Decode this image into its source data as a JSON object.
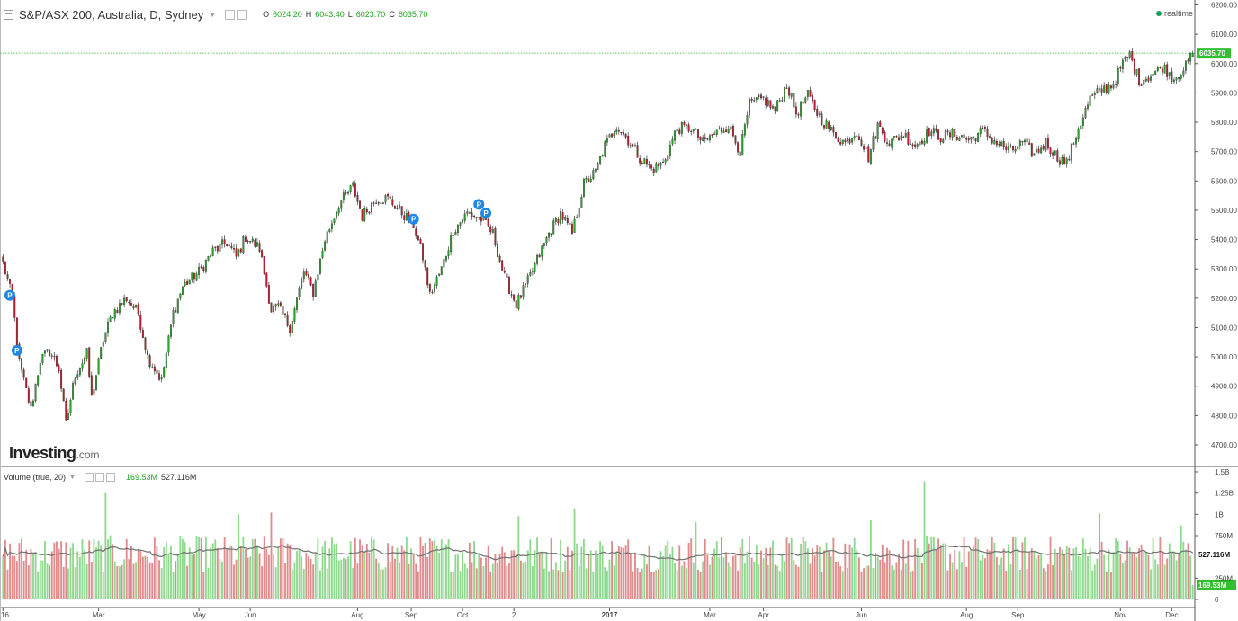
{
  "header": {
    "symbol": "S&P/ASX 200, Australia, D, Sydney",
    "ohlc": [
      {
        "k": "O",
        "v": "6024.20"
      },
      {
        "k": "H",
        "v": "6043.40"
      },
      {
        "k": "L",
        "v": "6023.70"
      },
      {
        "k": "C",
        "v": "6035.70"
      }
    ]
  },
  "realtime_label": "realtime",
  "logo": {
    "main": "Investing",
    "suffix": ".com"
  },
  "volume_header": {
    "name": "Volume (true, 20)",
    "v1": "169.53M",
    "v2": "527.116M"
  },
  "colors": {
    "up": "#1f9e1f",
    "down": "#b22222",
    "up_fill": "#2fa12f",
    "down_fill": "#bf1e2e",
    "vol_up": "#8fd98f",
    "vol_down": "#e08c8c",
    "ma": "#707070",
    "price_line": "#22b822",
    "marker": "#1e88e5"
  },
  "chart_data": [
    {
      "type": "candlestick",
      "title": "S&P/ASX 200, Australia, D, Sydney",
      "ylim": [
        4650,
        6200
      ],
      "y_ticks": [
        "6200.00",
        "6100.00",
        "6000.00",
        "5900.00",
        "5800.00",
        "5700.00",
        "5600.00",
        "5500.00",
        "5400.00",
        "5300.00",
        "5200.00",
        "5100.00",
        "5000.00",
        "4900.00",
        "4800.00",
        "4700.00"
      ],
      "y_tick_values": [
        6200,
        6100,
        6000,
        5900,
        5800,
        5700,
        5600,
        5500,
        5400,
        5300,
        5200,
        5100,
        5000,
        4900,
        4800,
        4700
      ],
      "x_ticks": [
        {
          "label": "16",
          "idx": 0
        },
        {
          "label": "Mar",
          "idx": 41
        },
        {
          "label": "May",
          "idx": 84
        },
        {
          "label": "Jun",
          "idx": 106
        },
        {
          "label": "Aug",
          "idx": 152
        },
        {
          "label": "Sep",
          "idx": 175
        },
        {
          "label": "Oct",
          "idx": 197
        },
        {
          "label": "2",
          "idx": 219
        },
        {
          "label": "2017",
          "idx": 260
        },
        {
          "label": "Mar",
          "idx": 303
        },
        {
          "label": "Apr",
          "idx": 326
        },
        {
          "label": "Jun",
          "idx": 368
        },
        {
          "label": "Aug",
          "idx": 413
        },
        {
          "label": "Sep",
          "idx": 435
        },
        {
          "label": "Nov",
          "idx": 479
        },
        {
          "label": "Dec",
          "idx": 501
        }
      ],
      "last_price": "6035.70",
      "last_value": 6035.7,
      "markers": [
        {
          "label": "P",
          "idx": 1,
          "value": 5210
        },
        {
          "label": "P",
          "idx": 6,
          "value": 5022
        },
        {
          "label": "P",
          "idx": 176,
          "value": 5470
        },
        {
          "label": "P",
          "idx": 204,
          "value": 5520
        },
        {
          "label": "P",
          "idx": 207,
          "value": 5490
        }
      ],
      "anchors": [
        [
          0,
          5320
        ],
        [
          4,
          5200
        ],
        [
          7,
          4980
        ],
        [
          12,
          4820
        ],
        [
          16,
          4990
        ],
        [
          20,
          5020
        ],
        [
          24,
          4960
        ],
        [
          27,
          4770
        ],
        [
          31,
          4940
        ],
        [
          36,
          5010
        ],
        [
          38,
          4860
        ],
        [
          43,
          5060
        ],
        [
          47,
          5150
        ],
        [
          53,
          5200
        ],
        [
          58,
          5150
        ],
        [
          62,
          5000
        ],
        [
          68,
          4920
        ],
        [
          73,
          5150
        ],
        [
          77,
          5240
        ],
        [
          84,
          5290
        ],
        [
          90,
          5360
        ],
        [
          96,
          5390
        ],
        [
          100,
          5340
        ],
        [
          104,
          5410
        ],
        [
          110,
          5370
        ],
        [
          115,
          5160
        ],
        [
          118,
          5170
        ],
        [
          123,
          5100
        ],
        [
          129,
          5290
        ],
        [
          133,
          5220
        ],
        [
          138,
          5400
        ],
        [
          144,
          5520
        ],
        [
          150,
          5580
        ],
        [
          154,
          5480
        ],
        [
          160,
          5540
        ],
        [
          165,
          5540
        ],
        [
          170,
          5500
        ],
        [
          176,
          5450
        ],
        [
          180,
          5340
        ],
        [
          183,
          5210
        ],
        [
          188,
          5300
        ],
        [
          193,
          5430
        ],
        [
          199,
          5490
        ],
        [
          205,
          5470
        ],
        [
          210,
          5420
        ],
        [
          215,
          5270
        ],
        [
          220,
          5180
        ],
        [
          224,
          5240
        ],
        [
          229,
          5330
        ],
        [
          234,
          5420
        ],
        [
          239,
          5490
        ],
        [
          244,
          5420
        ],
        [
          249,
          5590
        ],
        [
          254,
          5630
        ],
        [
          258,
          5720
        ],
        [
          263,
          5790
        ],
        [
          268,
          5740
        ],
        [
          273,
          5680
        ],
        [
          278,
          5640
        ],
        [
          283,
          5660
        ],
        [
          289,
          5780
        ],
        [
          295,
          5780
        ],
        [
          300,
          5730
        ],
        [
          305,
          5760
        ],
        [
          311,
          5790
        ],
        [
          316,
          5700
        ],
        [
          320,
          5860
        ],
        [
          326,
          5880
        ],
        [
          331,
          5840
        ],
        [
          336,
          5930
        ],
        [
          340,
          5830
        ],
        [
          345,
          5890
        ],
        [
          350,
          5820
        ],
        [
          356,
          5760
        ],
        [
          361,
          5730
        ],
        [
          366,
          5770
        ],
        [
          371,
          5680
        ],
        [
          375,
          5790
        ],
        [
          380,
          5730
        ],
        [
          386,
          5760
        ],
        [
          391,
          5720
        ],
        [
          397,
          5770
        ],
        [
          402,
          5750
        ],
        [
          408,
          5760
        ],
        [
          414,
          5740
        ],
        [
          420,
          5770
        ],
        [
          426,
          5730
        ],
        [
          432,
          5700
        ],
        [
          437,
          5730
        ],
        [
          442,
          5690
        ],
        [
          447,
          5730
        ],
        [
          452,
          5680
        ],
        [
          456,
          5660
        ],
        [
          461,
          5780
        ],
        [
          466,
          5880
        ],
        [
          471,
          5910
        ],
        [
          476,
          5930
        ],
        [
          480,
          6000
        ],
        [
          483,
          6030
        ],
        [
          487,
          5940
        ],
        [
          492,
          5960
        ],
        [
          497,
          5990
        ],
        [
          502,
          5950
        ],
        [
          507,
          5990
        ],
        [
          510,
          6035
        ]
      ],
      "total_bars": 511
    },
    {
      "type": "bar",
      "title": "Volume (true, 20)",
      "ylim": [
        0,
        1500000000
      ],
      "y_ticks": [
        "1.5B",
        "1.25B",
        "1B",
        "750M",
        "250M",
        "0"
      ],
      "y_tick_values": [
        1500000000,
        1250000000,
        1000000000,
        750000000,
        250000000,
        0
      ],
      "last_volume": "169.53M",
      "last_volume_value": 169530000,
      "ma_value": "527.116M",
      "ma_value_num": 527116000,
      "typical_volume": 580000000,
      "spikes": [
        {
          "idx": 44,
          "value": 1250000000
        },
        {
          "idx": 101,
          "value": 1000000000
        },
        {
          "idx": 115,
          "value": 1020000000
        },
        {
          "idx": 221,
          "value": 980000000
        },
        {
          "idx": 245,
          "value": 1070000000
        },
        {
          "idx": 297,
          "value": 910000000
        },
        {
          "idx": 372,
          "value": 930000000
        },
        {
          "idx": 395,
          "value": 1390000000
        },
        {
          "idx": 470,
          "value": 1010000000
        },
        {
          "idx": 505,
          "value": 870000000
        }
      ]
    }
  ]
}
